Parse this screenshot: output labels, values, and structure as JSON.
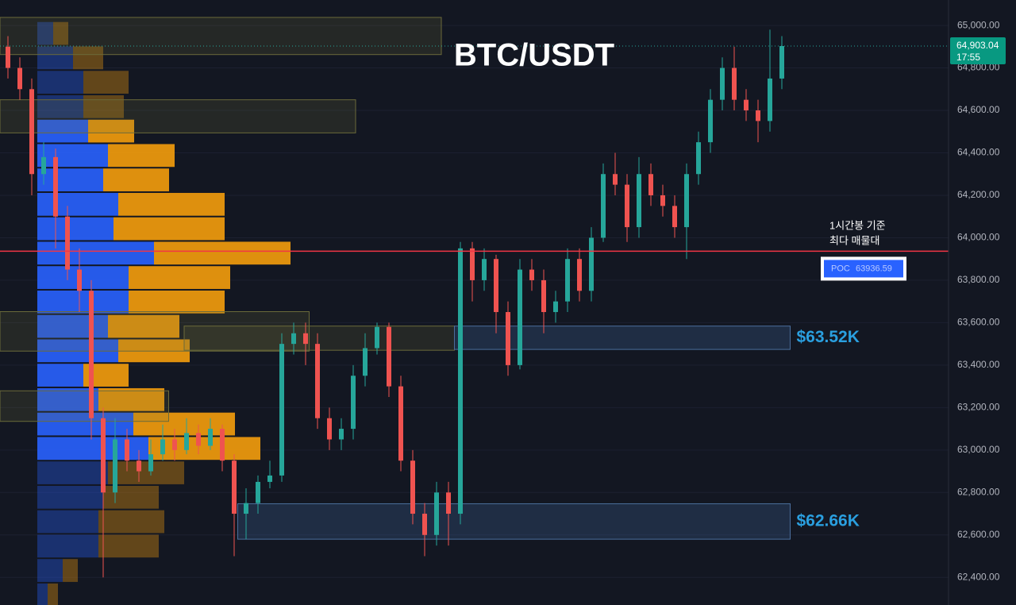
{
  "chart_data": {
    "type": "candlestick",
    "title": "BTC/USDT",
    "open": [
      64900,
      64800,
      64700,
      64300,
      64380,
      64100,
      63850,
      63750,
      63150,
      62800,
      63050,
      62950,
      62900,
      62980,
      63050,
      63000,
      63080,
      63020,
      63100,
      62950,
      62700,
      62750,
      62850,
      62880,
      63500,
      63550,
      63500,
      63150,
      63050,
      63100,
      63350,
      63480,
      63580,
      63300,
      62950,
      62700,
      62600,
      62800,
      62700,
      63950,
      63800,
      63900,
      63650,
      63400,
      63850,
      63800,
      63650,
      63700,
      63900,
      63750,
      64000,
      64300,
      64250,
      64050,
      64300,
      64200,
      64150,
      64050,
      64300,
      64450,
      64650,
      64800,
      64650,
      64600,
      64550,
      64750
    ],
    "high": [
      64950,
      64850,
      64750,
      64450,
      64420,
      64150,
      63950,
      63800,
      63200,
      63150,
      63100,
      63000,
      63050,
      63120,
      63100,
      63150,
      63120,
      63150,
      63120,
      62980,
      62820,
      62880,
      62950,
      63550,
      63600,
      63600,
      63550,
      63200,
      63150,
      63400,
      63550,
      63600,
      63600,
      63350,
      63000,
      62750,
      62850,
      62850,
      63980,
      63980,
      63950,
      63920,
      63700,
      63900,
      63900,
      63850,
      63750,
      63950,
      63950,
      64050,
      64350,
      64400,
      64300,
      64380,
      64350,
      64250,
      64200,
      64350,
      64500,
      64700,
      64850,
      64900,
      64700,
      64650,
      64980,
      64950
    ],
    "low": [
      64750,
      64650,
      64200,
      64250,
      63950,
      63800,
      63650,
      63050,
      62400,
      62750,
      62900,
      62850,
      62880,
      62950,
      62950,
      62980,
      62980,
      63000,
      62900,
      62500,
      62580,
      62700,
      62820,
      62850,
      63450,
      63400,
      63100,
      63000,
      63000,
      63050,
      63300,
      63450,
      63250,
      62900,
      62650,
      62500,
      62550,
      62550,
      62650,
      63700,
      63750,
      63550,
      63350,
      63380,
      63750,
      63550,
      63600,
      63650,
      63700,
      63700,
      63980,
      64200,
      63980,
      64000,
      64150,
      64100,
      64000,
      63900,
      64250,
      64400,
      64600,
      64600,
      64550,
      64450,
      64500,
      64700
    ],
    "close": [
      64800,
      64700,
      64300,
      64380,
      64100,
      63850,
      63750,
      63150,
      62800,
      63050,
      62950,
      62900,
      62980,
      63050,
      63000,
      63080,
      63020,
      63100,
      62950,
      62700,
      62750,
      62850,
      62880,
      63500,
      63550,
      63500,
      63150,
      63050,
      63100,
      63350,
      63480,
      63580,
      63300,
      62950,
      62700,
      62600,
      62800,
      62700,
      63950,
      63800,
      63900,
      63650,
      63400,
      63850,
      63800,
      63650,
      63700,
      63900,
      63750,
      64000,
      64300,
      64250,
      64050,
      64300,
      64200,
      64150,
      64050,
      64300,
      64450,
      64650,
      64800,
      64650,
      64600,
      64550,
      64750,
      64903.04
    ],
    "up_color": "#26a69a",
    "down_color": "#ef5350",
    "ylim": [
      62270,
      65120
    ],
    "yticks": [
      {
        "value": 65000,
        "label": "65,000.00"
      },
      {
        "value": 64800,
        "label": "64,800.00"
      },
      {
        "value": 64600,
        "label": "64,600.00"
      },
      {
        "value": 64400,
        "label": "64,400.00"
      },
      {
        "value": 64200,
        "label": "64,200.00"
      },
      {
        "value": 64000,
        "label": "64,000.00"
      },
      {
        "value": 63800,
        "label": "63,800.00"
      },
      {
        "value": 63600,
        "label": "63,600.00"
      },
      {
        "value": 63400,
        "label": "63,400.00"
      },
      {
        "value": 63200,
        "label": "63,200.00"
      },
      {
        "value": 63000,
        "label": "63,000.00"
      },
      {
        "value": 62800,
        "label": "62,800.00"
      },
      {
        "value": 62600,
        "label": "62,600.00"
      },
      {
        "value": 62400,
        "label": "62,400.00"
      }
    ],
    "grid": true,
    "last_price": {
      "value": 64903.04,
      "label": "64,903.04"
    },
    "countdown": "17:55",
    "profile": {
      "bins": [
        65020,
        64905,
        64790,
        64675,
        64560,
        64445,
        64330,
        64215,
        64100,
        63985,
        63870,
        63755,
        63640,
        63525,
        63410,
        63295,
        63180,
        63065,
        62950,
        62835,
        62720,
        62605,
        62490,
        62375,
        62260
      ],
      "buy": [
        20,
        45,
        58,
        58,
        64,
        89,
        83,
        102,
        96,
        147,
        115,
        115,
        89,
        102,
        58,
        77,
        121,
        140,
        89,
        83,
        77,
        77,
        32,
        13
      ],
      "sell": [
        19,
        38,
        57,
        51,
        58,
        84,
        83,
        134,
        140,
        172,
        128,
        121,
        90,
        90,
        57,
        83,
        128,
        141,
        96,
        70,
        83,
        76,
        19,
        13
      ],
      "value_area_rows": [
        4,
        17
      ],
      "buy_color": "#2962ff",
      "sell_color": "#f59d0c"
    },
    "poc": {
      "value": 63936.59,
      "label": "POC",
      "color": "#f23645"
    },
    "annotation": [
      "1시간봉 기준",
      "최다 매물대"
    ],
    "zones": [
      {
        "from": -0.7,
        "to": 36.4,
        "low": 64863,
        "high": 65038,
        "color": "yellow"
      },
      {
        "from": -0.7,
        "to": 29.2,
        "low": 64494,
        "high": 64650,
        "color": "yellow"
      },
      {
        "from": -0.7,
        "to": 25.3,
        "low": 63466,
        "high": 63652,
        "color": "yellow"
      },
      {
        "from": -0.7,
        "to": 13.5,
        "low": 63135,
        "high": 63279,
        "color": "yellow"
      },
      {
        "from": 14.8,
        "to": 37.5,
        "low": 63470,
        "high": 63584,
        "color": "yellow"
      },
      {
        "from": 37.5,
        "to": 65.7,
        "low": 63474,
        "high": 63584,
        "color": "blue",
        "label": "$63.52K"
      },
      {
        "from": 19.3,
        "to": 65.7,
        "low": 62580,
        "high": 62747,
        "color": "blue",
        "label": "$62.66K"
      }
    ]
  }
}
